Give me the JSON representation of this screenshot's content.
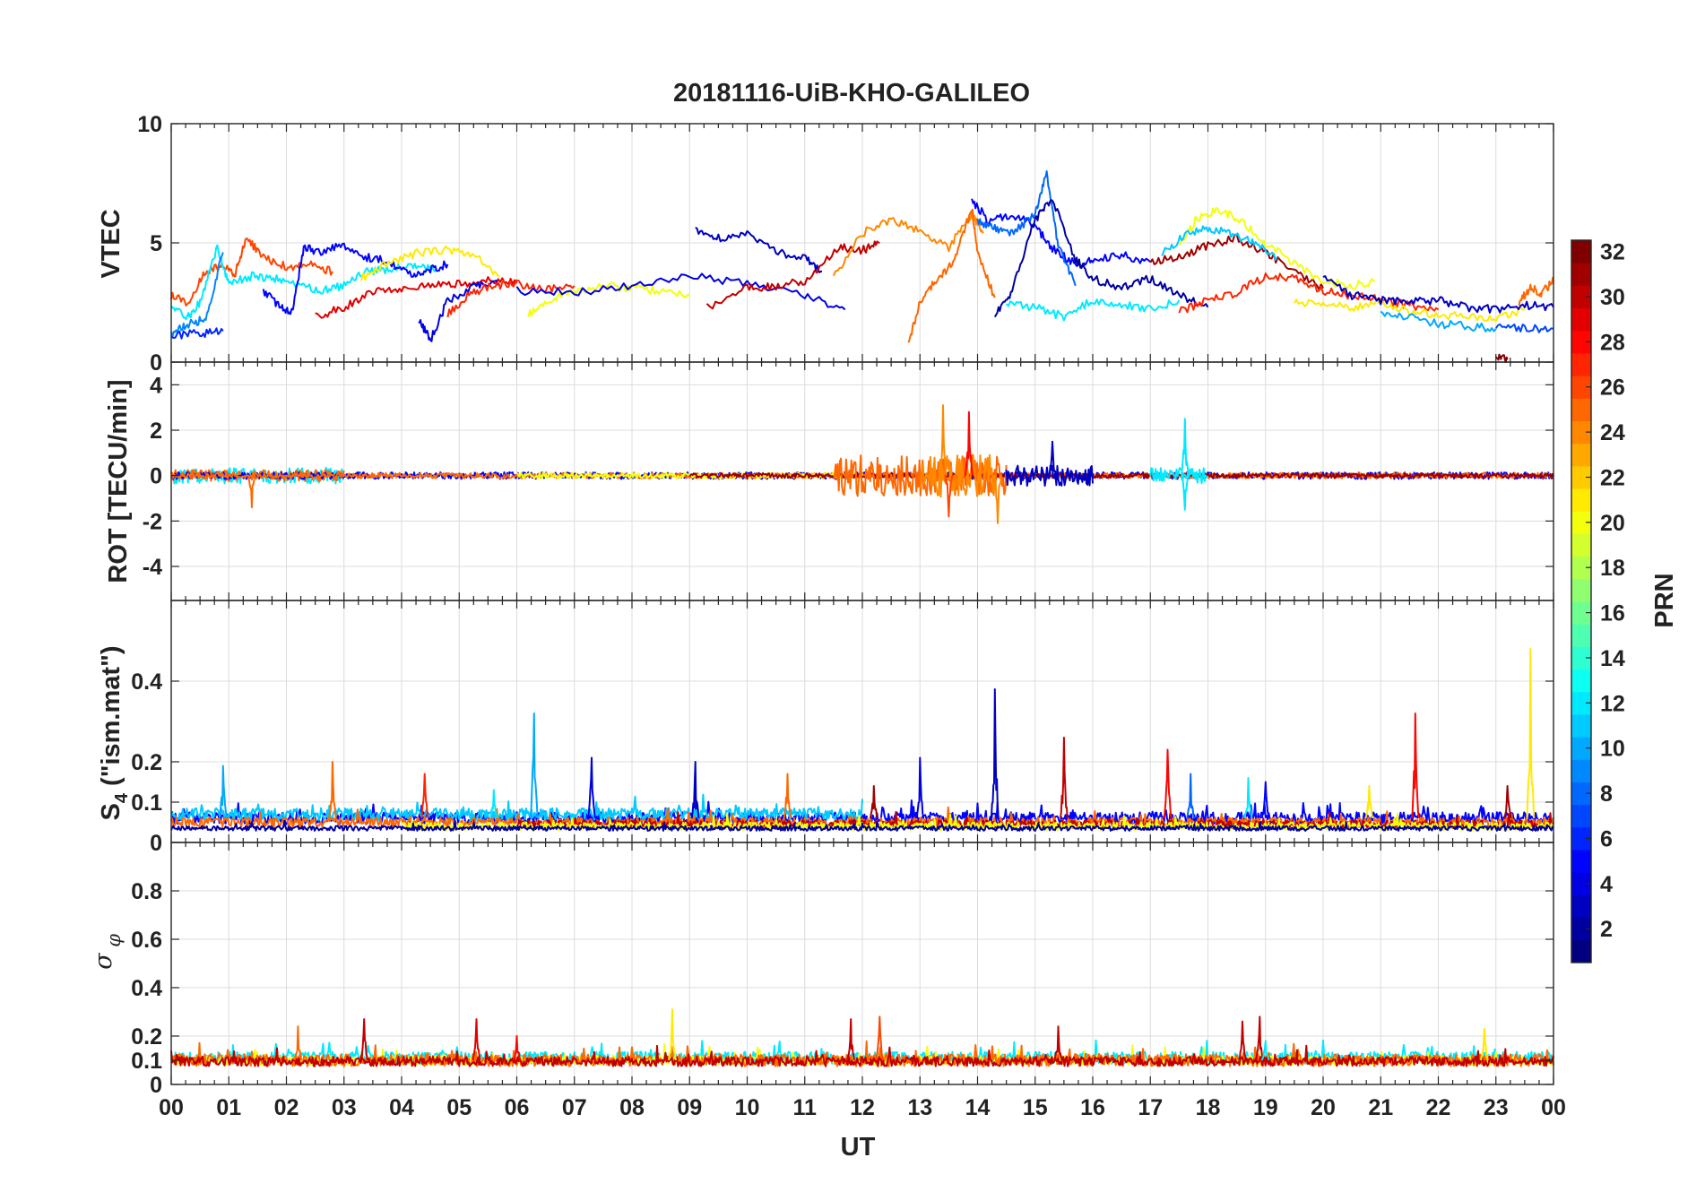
{
  "title": "20181116-UiB-KHO-GALILEO",
  "colors": {
    "axis": "#262626",
    "grid": "#dcdcdc",
    "background": "#ffffff"
  },
  "chart_data": [
    {
      "id": "vtec",
      "type": "line",
      "ylabel": "VTEC",
      "ylim": [
        0,
        10
      ],
      "yticks": [
        0,
        5,
        10
      ],
      "xlim": [
        0,
        24
      ],
      "grid": true,
      "series": [
        {
          "prn": 26,
          "x": [
            0,
            0.3,
            0.6,
            0.9,
            1.1,
            1.3,
            1.6,
            2.0,
            2.4,
            2.8
          ],
          "y": [
            2.8,
            2.5,
            3.8,
            4.1,
            3.6,
            5.2,
            4.4,
            4.0,
            4.1,
            3.8
          ]
        },
        {
          "prn": 12,
          "x": [
            0,
            0.3,
            0.5,
            0.8,
            1.0,
            1.4,
            1.8,
            2.2,
            2.6,
            3.0,
            3.4,
            3.8,
            4.2,
            4.6
          ],
          "y": [
            2.2,
            1.9,
            2.5,
            4.8,
            3.3,
            3.6,
            3.5,
            3.2,
            3.0,
            3.2,
            3.8,
            3.9,
            4.0,
            3.9
          ]
        },
        {
          "prn": 9,
          "x": [
            0,
            0.3,
            0.6,
            0.9
          ],
          "y": [
            1.2,
            1.6,
            1.8,
            4.6
          ]
        },
        {
          "prn": 6,
          "x": [
            0,
            0.5,
            0.9
          ],
          "y": [
            1.1,
            1.2,
            1.3
          ]
        },
        {
          "prn": 5,
          "x": [
            1.6,
            1.9,
            2.1,
            2.3,
            2.6,
            3.0,
            3.4,
            3.8,
            4.2,
            4.5,
            4.8
          ],
          "y": [
            3.0,
            2.3,
            2.1,
            4.8,
            4.6,
            4.9,
            4.4,
            4.2,
            3.6,
            3.9,
            4.1
          ]
        },
        {
          "prn": 29,
          "x": [
            2.5,
            3.0,
            3.5,
            4.0,
            4.5,
            5.0,
            5.5,
            6.0
          ],
          "y": [
            1.9,
            2.3,
            3.0,
            3.1,
            3.2,
            3.3,
            3.4,
            3.3
          ]
        },
        {
          "prn": 21,
          "x": [
            3.3,
            3.8,
            4.3,
            4.8,
            5.3,
            5.7
          ],
          "y": [
            3.5,
            4.2,
            4.6,
            4.7,
            4.5,
            3.6
          ]
        },
        {
          "prn": 4,
          "x": [
            4.3,
            4.5,
            4.8,
            5.3,
            5.7
          ],
          "y": [
            1.8,
            0.9,
            2.6,
            3.2,
            3.3
          ]
        },
        {
          "prn": 27,
          "x": [
            4.8,
            5.2,
            5.6,
            6.0,
            6.5,
            7.0
          ],
          "y": [
            2.0,
            2.9,
            3.2,
            3.3,
            3.0,
            3.2
          ]
        },
        {
          "prn": 3,
          "x": [
            9.1,
            9.5,
            10.0,
            10.5,
            11.0,
            11.3
          ],
          "y": [
            5.6,
            5.2,
            5.4,
            4.6,
            4.4,
            3.8
          ]
        },
        {
          "prn": 20,
          "x": [
            6.2,
            6.6,
            7.0,
            7.5,
            8.0,
            8.5,
            9.0
          ],
          "y": [
            2.0,
            2.6,
            3.0,
            3.2,
            3.1,
            3.0,
            2.8
          ]
        },
        {
          "prn": 4,
          "x": [
            6.0,
            7.0,
            8.0,
            9.0,
            10.0,
            11.0,
            11.7
          ],
          "y": [
            3.0,
            2.9,
            3.2,
            3.6,
            3.3,
            2.8,
            2.2
          ]
        },
        {
          "prn": 30,
          "x": [
            9.3,
            10.0,
            10.5,
            11.0,
            11.6,
            12.0,
            12.3
          ],
          "y": [
            2.3,
            3.1,
            3.2,
            3.4,
            4.8,
            4.7,
            5.0
          ]
        },
        {
          "prn": 24,
          "x": [
            11.5,
            12.0,
            12.5,
            13.0,
            13.5,
            13.9,
            14.1
          ],
          "y": [
            3.6,
            5.4,
            6.0,
            5.5,
            4.8,
            6.2,
            5.4
          ]
        },
        {
          "prn": 25,
          "x": [
            12.8,
            13.0,
            13.3,
            13.6,
            13.9,
            14.0,
            14.3
          ],
          "y": [
            0.8,
            2.5,
            3.5,
            4.2,
            6.5,
            4.6,
            2.7
          ]
        },
        {
          "prn": 5,
          "x": [
            13.9,
            14.2,
            14.6,
            15.0,
            15.3,
            15.7,
            16.0,
            16.5,
            17.0
          ],
          "y": [
            6.8,
            5.9,
            6.2,
            5.7,
            4.8,
            4.1,
            4.3,
            4.5,
            4.2
          ]
        },
        {
          "prn": 8,
          "x": [
            14.0,
            14.3,
            14.6,
            15.0,
            15.2,
            15.4,
            15.7
          ],
          "y": [
            5.9,
            5.6,
            5.4,
            6.2,
            7.9,
            4.9,
            3.2
          ]
        },
        {
          "prn": 2,
          "x": [
            14.3,
            14.6,
            15.0,
            15.3,
            15.7,
            16.0,
            16.5,
            17.0,
            17.5,
            18.0
          ],
          "y": [
            1.9,
            3.0,
            6.0,
            6.8,
            4.3,
            3.5,
            3.1,
            3.5,
            2.8,
            2.3
          ]
        },
        {
          "prn": 12,
          "x": [
            14.5,
            15.0,
            15.5,
            16.0,
            16.5,
            17.0,
            17.5
          ],
          "y": [
            2.4,
            2.3,
            1.9,
            2.6,
            2.4,
            2.2,
            2.6
          ]
        },
        {
          "prn": 31,
          "x": [
            17.0,
            17.5,
            18.0,
            18.5,
            19.0,
            19.5,
            20.0
          ],
          "y": [
            4.2,
            4.4,
            4.9,
            5.2,
            4.6,
            3.8,
            3.1
          ]
        },
        {
          "prn": 20,
          "x": [
            17.5,
            17.8,
            18.2,
            18.6,
            19.0,
            19.5,
            20.0,
            20.5,
            20.9
          ],
          "y": [
            4.8,
            6.0,
            6.4,
            5.9,
            5.0,
            4.1,
            3.4,
            3.2,
            3.4
          ]
        },
        {
          "prn": 11,
          "x": [
            17.2,
            17.6,
            18.0,
            18.4,
            18.8,
            19.2
          ],
          "y": [
            4.6,
            5.3,
            5.6,
            5.4,
            5.0,
            4.4
          ]
        },
        {
          "prn": 27,
          "x": [
            17.5,
            18.0,
            18.5,
            19.0,
            19.5,
            20.0,
            20.5,
            21.0,
            21.5,
            22.0
          ],
          "y": [
            2.1,
            2.6,
            2.9,
            3.6,
            3.5,
            3.0,
            2.8,
            2.6,
            2.4,
            2.2
          ]
        },
        {
          "prn": 21,
          "x": [
            19.5,
            20.0,
            20.5,
            21.0,
            21.5,
            22.0,
            22.5,
            23.0,
            23.5
          ],
          "y": [
            2.5,
            2.4,
            2.3,
            2.5,
            2.1,
            2.0,
            1.9,
            1.8,
            2.2
          ]
        },
        {
          "prn": 3,
          "x": [
            20.0,
            20.5,
            21.0,
            21.5,
            22.0,
            22.5,
            23.0,
            23.5,
            24.0
          ],
          "y": [
            3.5,
            2.8,
            2.6,
            2.5,
            2.6,
            2.3,
            2.2,
            2.4,
            2.3
          ]
        },
        {
          "prn": 10,
          "x": [
            21.0,
            21.5,
            22.0,
            22.5,
            23.0
          ],
          "y": [
            2.0,
            1.9,
            1.6,
            1.5,
            1.4
          ]
        },
        {
          "prn": 7,
          "x": [
            23.0,
            23.5,
            24.0
          ],
          "y": [
            1.5,
            1.4,
            1.4
          ]
        },
        {
          "prn": 25,
          "x": [
            23.4,
            23.6,
            23.8,
            24.0
          ],
          "y": [
            2.5,
            3.1,
            2.9,
            3.4
          ]
        },
        {
          "prn": 32,
          "x": [
            23.0,
            23.2
          ],
          "y": [
            0.25,
            0.1
          ]
        }
      ]
    },
    {
      "id": "rot",
      "type": "line",
      "ylabel": "ROT [TECU/min]",
      "ylim": [
        -5.5,
        5
      ],
      "yticks": [
        -4,
        -2,
        0,
        2,
        4
      ],
      "xlim": [
        0,
        24
      ],
      "grid": true,
      "noise_series": [
        {
          "prn": 12,
          "from": 0,
          "to": 3,
          "amplitude": 0.35
        },
        {
          "prn": 25,
          "from": 0,
          "to": 3,
          "amplitude": 0.25
        },
        {
          "prn": 5,
          "from": 0,
          "to": 24,
          "amplitude": 0.15
        },
        {
          "prn": 25,
          "from": 0,
          "to": 24,
          "amplitude": 0.12
        },
        {
          "prn": 20,
          "from": 6,
          "to": 12,
          "amplitude": 0.12
        },
        {
          "prn": 31,
          "from": 9,
          "to": 24,
          "amplitude": 0.1
        },
        {
          "prn": 25,
          "from": 11.5,
          "to": 14.5,
          "amplitude": 0.9
        },
        {
          "prn": 24,
          "from": 13,
          "to": 14.3,
          "amplitude": 1.0
        },
        {
          "prn": 3,
          "from": 14.5,
          "to": 16,
          "amplitude": 0.45
        },
        {
          "prn": 12,
          "from": 17,
          "to": 18,
          "amplitude": 0.35
        }
      ],
      "spikes": [
        {
          "prn": 24,
          "x": 13.4,
          "y": 3.1
        },
        {
          "prn": 28,
          "x": 13.85,
          "y": 2.8
        },
        {
          "prn": 24,
          "x": 14.35,
          "y": -2.1
        },
        {
          "prn": 26,
          "x": 13.5,
          "y": -1.8
        },
        {
          "prn": 3,
          "x": 15.3,
          "y": 1.5
        },
        {
          "prn": 12,
          "x": 17.6,
          "y": 2.5
        },
        {
          "prn": 12,
          "x": 17.6,
          "y": -1.5
        },
        {
          "prn": 25,
          "x": 1.4,
          "y": -1.4
        }
      ]
    },
    {
      "id": "s4",
      "type": "line",
      "ylabel": "S4 (\"ism.mat\")",
      "ylim": [
        0,
        0.6
      ],
      "yticks": [
        0,
        0.1,
        0.2,
        0.4
      ],
      "xlim": [
        0,
        24
      ],
      "grid": true,
      "noise_series": [
        {
          "prn": 5,
          "from": 0,
          "to": 24,
          "base": 0.06,
          "amplitude": 0.015
        },
        {
          "prn": 11,
          "from": 0,
          "to": 12,
          "base": 0.07,
          "amplitude": 0.015
        },
        {
          "prn": 25,
          "from": 0,
          "to": 24,
          "base": 0.05,
          "amplitude": 0.012
        },
        {
          "prn": 30,
          "from": 6,
          "to": 24,
          "base": 0.045,
          "amplitude": 0.01
        },
        {
          "prn": 20,
          "from": 4,
          "to": 24,
          "base": 0.04,
          "amplitude": 0.01
        },
        {
          "prn": 2,
          "from": 0,
          "to": 24,
          "base": 0.035,
          "amplitude": 0.006
        }
      ],
      "spikes": [
        {
          "prn": 10,
          "x": 0.9,
          "y": 0.19
        },
        {
          "prn": 25,
          "x": 2.8,
          "y": 0.2
        },
        {
          "prn": 27,
          "x": 4.4,
          "y": 0.17
        },
        {
          "prn": 12,
          "x": 5.6,
          "y": 0.13
        },
        {
          "prn": 10,
          "x": 6.3,
          "y": 0.32
        },
        {
          "prn": 4,
          "x": 7.3,
          "y": 0.21
        },
        {
          "prn": 3,
          "x": 9.1,
          "y": 0.2
        },
        {
          "prn": 25,
          "x": 10.7,
          "y": 0.17
        },
        {
          "prn": 31,
          "x": 12.2,
          "y": 0.14
        },
        {
          "prn": 4,
          "x": 13.0,
          "y": 0.21
        },
        {
          "prn": 3,
          "x": 14.3,
          "y": 0.38
        },
        {
          "prn": 30,
          "x": 15.5,
          "y": 0.26
        },
        {
          "prn": 28,
          "x": 17.3,
          "y": 0.23
        },
        {
          "prn": 8,
          "x": 17.7,
          "y": 0.17
        },
        {
          "prn": 12,
          "x": 18.7,
          "y": 0.16
        },
        {
          "prn": 5,
          "x": 19.0,
          "y": 0.15
        },
        {
          "prn": 21,
          "x": 20.8,
          "y": 0.14
        },
        {
          "prn": 28,
          "x": 21.6,
          "y": 0.32
        },
        {
          "prn": 21,
          "x": 23.6,
          "y": 0.48
        },
        {
          "prn": 31,
          "x": 23.2,
          "y": 0.14
        }
      ]
    },
    {
      "id": "sigma_phi",
      "type": "line",
      "ylabel": "σφ",
      "ylim": [
        0,
        1
      ],
      "yticks": [
        0,
        0.1,
        0.2,
        0.4,
        0.6,
        0.8
      ],
      "xlim": [
        0,
        24
      ],
      "grid": true,
      "noise_series": [
        {
          "prn": 12,
          "from": 0,
          "to": 24,
          "base": 0.11,
          "amplitude": 0.025
        },
        {
          "prn": 20,
          "from": 0,
          "to": 24,
          "base": 0.1,
          "amplitude": 0.02
        },
        {
          "prn": 25,
          "from": 0,
          "to": 24,
          "base": 0.1,
          "amplitude": 0.025
        },
        {
          "prn": 30,
          "from": 0,
          "to": 24,
          "base": 0.095,
          "amplitude": 0.02
        }
      ],
      "spikes": [
        {
          "prn": 25,
          "x": 2.2,
          "y": 0.24
        },
        {
          "prn": 30,
          "x": 3.35,
          "y": 0.27
        },
        {
          "prn": 29,
          "x": 5.3,
          "y": 0.27
        },
        {
          "prn": 28,
          "x": 6.0,
          "y": 0.2
        },
        {
          "prn": 21,
          "x": 8.7,
          "y": 0.31
        },
        {
          "prn": 30,
          "x": 11.8,
          "y": 0.27
        },
        {
          "prn": 26,
          "x": 12.3,
          "y": 0.28
        },
        {
          "prn": 30,
          "x": 15.4,
          "y": 0.24
        },
        {
          "prn": 30,
          "x": 18.6,
          "y": 0.26
        },
        {
          "prn": 30,
          "x": 18.9,
          "y": 0.28
        },
        {
          "prn": 12,
          "x": 19.0,
          "y": 0.18
        },
        {
          "prn": 21,
          "x": 22.8,
          "y": 0.23
        }
      ]
    }
  ],
  "x_axis": {
    "label": "UT",
    "tick_labels": [
      "00",
      "01",
      "02",
      "03",
      "04",
      "05",
      "06",
      "07",
      "08",
      "09",
      "10",
      "11",
      "12",
      "13",
      "14",
      "15",
      "16",
      "17",
      "18",
      "19",
      "20",
      "21",
      "22",
      "23",
      "00"
    ]
  },
  "colorbar": {
    "label": "PRN",
    "range": [
      1,
      32
    ],
    "tick_labels": [
      "2",
      "4",
      "6",
      "8",
      "10",
      "12",
      "14",
      "16",
      "18",
      "20",
      "22",
      "24",
      "26",
      "28",
      "30",
      "32"
    ],
    "tick_values": [
      2,
      4,
      6,
      8,
      10,
      12,
      14,
      16,
      18,
      20,
      22,
      24,
      26,
      28,
      30,
      32
    ],
    "colormap": "jet"
  }
}
